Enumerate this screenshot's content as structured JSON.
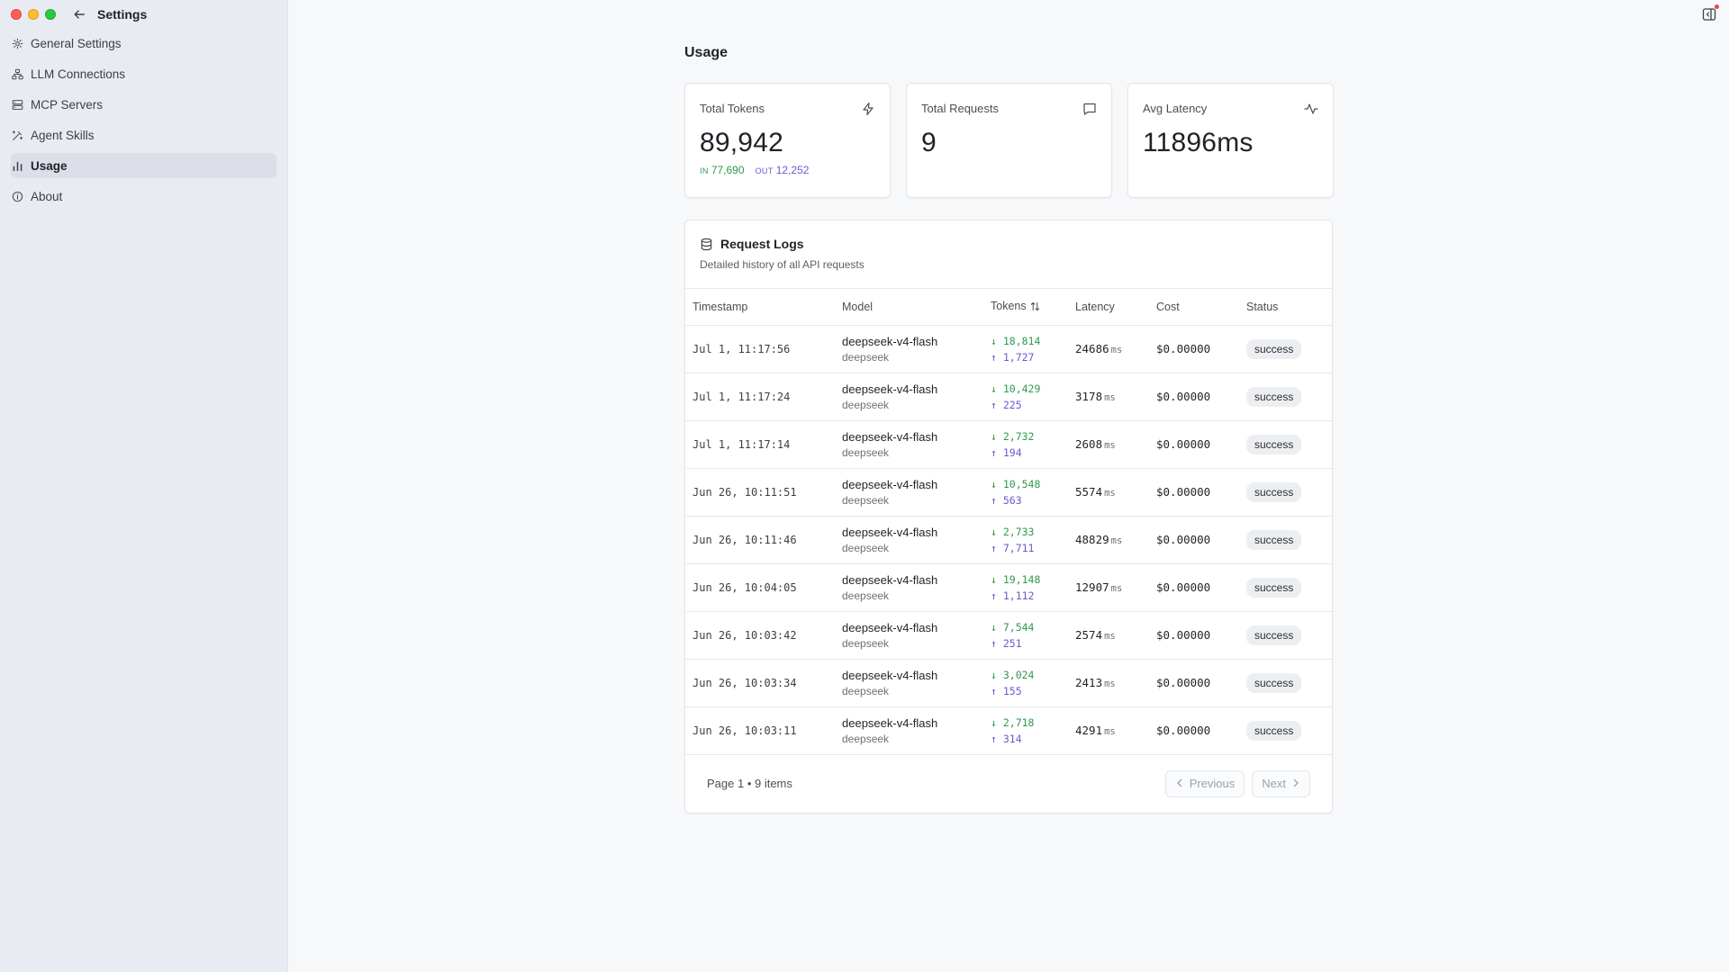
{
  "window": {
    "title": "Settings"
  },
  "sidebar": {
    "items": [
      {
        "label": "General Settings",
        "icon": "gear-icon",
        "active": false
      },
      {
        "label": "LLM Connections",
        "icon": "network-icon",
        "active": false
      },
      {
        "label": "MCP Servers",
        "icon": "server-icon",
        "active": false
      },
      {
        "label": "Agent Skills",
        "icon": "wand-icon",
        "active": false
      },
      {
        "label": "Usage",
        "icon": "bar-chart-icon",
        "active": true
      },
      {
        "label": "About",
        "icon": "info-icon",
        "active": false
      }
    ]
  },
  "page": {
    "title": "Usage"
  },
  "stats": {
    "total_tokens": {
      "label": "Total Tokens",
      "value": "89,942",
      "in_tag": "IN",
      "in_value": "77,690",
      "out_tag": "OUT",
      "out_value": "12,252",
      "icon": "lightning-icon"
    },
    "total_requests": {
      "label": "Total Requests",
      "value": "9",
      "icon": "message-icon"
    },
    "avg_latency": {
      "label": "Avg Latency",
      "value": "11896ms",
      "icon": "activity-icon"
    }
  },
  "logs": {
    "title": "Request Logs",
    "description": "Detailed history of all API requests",
    "columns": [
      "Timestamp",
      "Model",
      "Tokens",
      "Latency",
      "Cost",
      "Status"
    ],
    "rows": [
      {
        "timestamp": "Jul 1, 11:17:56",
        "model": "deepseek-v4-flash",
        "provider": "deepseek",
        "tokens_in": "↓ 18,814",
        "tokens_out": "↑ 1,727",
        "latency": "24686",
        "latency_unit": "ms",
        "cost": "$0.00000",
        "status": "success"
      },
      {
        "timestamp": "Jul 1, 11:17:24",
        "model": "deepseek-v4-flash",
        "provider": "deepseek",
        "tokens_in": "↓ 10,429",
        "tokens_out": "↑ 225",
        "latency": "3178",
        "latency_unit": "ms",
        "cost": "$0.00000",
        "status": "success"
      },
      {
        "timestamp": "Jul 1, 11:17:14",
        "model": "deepseek-v4-flash",
        "provider": "deepseek",
        "tokens_in": "↓ 2,732",
        "tokens_out": "↑ 194",
        "latency": "2608",
        "latency_unit": "ms",
        "cost": "$0.00000",
        "status": "success"
      },
      {
        "timestamp": "Jun 26, 10:11:51",
        "model": "deepseek-v4-flash",
        "provider": "deepseek",
        "tokens_in": "↓ 10,548",
        "tokens_out": "↑ 563",
        "latency": "5574",
        "latency_unit": "ms",
        "cost": "$0.00000",
        "status": "success"
      },
      {
        "timestamp": "Jun 26, 10:11:46",
        "model": "deepseek-v4-flash",
        "provider": "deepseek",
        "tokens_in": "↓ 2,733",
        "tokens_out": "↑ 7,711",
        "latency": "48829",
        "latency_unit": "ms",
        "cost": "$0.00000",
        "status": "success"
      },
      {
        "timestamp": "Jun 26, 10:04:05",
        "model": "deepseek-v4-flash",
        "provider": "deepseek",
        "tokens_in": "↓ 19,148",
        "tokens_out": "↑ 1,112",
        "latency": "12907",
        "latency_unit": "ms",
        "cost": "$0.00000",
        "status": "success"
      },
      {
        "timestamp": "Jun 26, 10:03:42",
        "model": "deepseek-v4-flash",
        "provider": "deepseek",
        "tokens_in": "↓ 7,544",
        "tokens_out": "↑ 251",
        "latency": "2574",
        "latency_unit": "ms",
        "cost": "$0.00000",
        "status": "success"
      },
      {
        "timestamp": "Jun 26, 10:03:34",
        "model": "deepseek-v4-flash",
        "provider": "deepseek",
        "tokens_in": "↓ 3,024",
        "tokens_out": "↑ 155",
        "latency": "2413",
        "latency_unit": "ms",
        "cost": "$0.00000",
        "status": "success"
      },
      {
        "timestamp": "Jun 26, 10:03:11",
        "model": "deepseek-v4-flash",
        "provider": "deepseek",
        "tokens_in": "↓ 2,718",
        "tokens_out": "↑ 314",
        "latency": "4291",
        "latency_unit": "ms",
        "cost": "$0.00000",
        "status": "success"
      }
    ],
    "pagination": {
      "info": "Page 1 • 9 items",
      "previous": "Previous",
      "next": "Next"
    }
  },
  "colors": {
    "tokens_in": "#2e9a4e",
    "tokens_out": "#6a5acd",
    "sidebar_bg": "#e9ebf3"
  }
}
